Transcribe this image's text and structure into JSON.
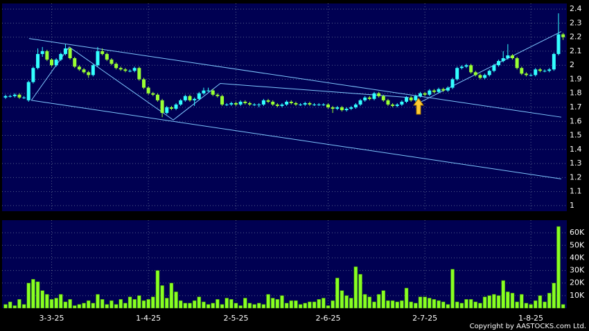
{
  "chart_data": [
    {
      "type": "candlestick",
      "up_color": "#33ffff",
      "down_color": "#99ff33",
      "ylim": [
        0.96,
        2.44
      ],
      "yticks": [
        1,
        1.1,
        1.2,
        1.3,
        1.4,
        1.5,
        1.6,
        1.7,
        1.8,
        1.9,
        2,
        2.1,
        2.2,
        2.3,
        2.4
      ],
      "grid": true,
      "open": [
        1.77,
        1.78,
        1.78,
        1.79,
        1.77,
        1.75,
        1.88,
        1.98,
        2.08,
        2.1,
        2.04,
        2.0,
        2.04,
        2.08,
        2.12,
        2.05,
        1.99,
        1.97,
        1.95,
        1.93,
        2.0,
        2.1,
        2.08,
        2.04,
        2.01,
        1.98,
        1.97,
        1.96,
        1.96,
        1.98,
        1.9,
        1.84,
        1.8,
        1.79,
        1.75,
        1.66,
        1.7,
        1.69,
        1.72,
        1.75,
        1.78,
        1.75,
        1.76,
        1.8,
        1.82,
        1.82,
        1.79,
        1.78,
        1.72,
        1.72,
        1.73,
        1.72,
        1.74,
        1.73,
        1.72,
        1.72,
        1.72,
        1.75,
        1.74,
        1.72,
        1.71,
        1.72,
        1.74,
        1.73,
        1.72,
        1.72,
        1.73,
        1.72,
        1.72,
        1.72,
        1.72,
        1.7,
        1.69,
        1.7,
        1.68,
        1.69,
        1.7,
        1.72,
        1.75,
        1.77,
        1.76,
        1.8,
        1.78,
        1.75,
        1.72,
        1.71,
        1.72,
        1.74,
        1.77,
        1.75,
        1.78,
        1.8,
        1.79,
        1.82,
        1.81,
        1.83,
        1.82,
        1.84,
        1.9,
        1.98,
        1.99,
        2.0,
        1.95,
        1.93,
        1.91,
        1.93,
        1.96,
        2.0,
        2.03,
        2.05,
        2.07,
        2.05,
        1.98,
        1.94,
        1.93,
        1.93,
        1.97,
        1.96,
        1.96,
        1.97,
        2.08,
        2.22
      ],
      "high": [
        1.79,
        1.79,
        1.8,
        1.8,
        1.78,
        1.89,
        1.99,
        2.12,
        2.13,
        2.11,
        2.05,
        2.05,
        2.09,
        2.15,
        2.13,
        2.06,
        2.0,
        1.98,
        1.96,
        2.01,
        2.13,
        2.12,
        2.09,
        2.05,
        2.02,
        1.99,
        1.98,
        1.97,
        1.99,
        1.99,
        1.91,
        1.85,
        1.81,
        1.8,
        1.76,
        1.71,
        1.71,
        1.73,
        1.76,
        1.79,
        1.79,
        1.77,
        1.81,
        1.84,
        1.84,
        1.83,
        1.8,
        1.79,
        1.73,
        1.74,
        1.74,
        1.75,
        1.75,
        1.74,
        1.73,
        1.73,
        1.76,
        1.76,
        1.75,
        1.73,
        1.73,
        1.75,
        1.75,
        1.74,
        1.73,
        1.74,
        1.74,
        1.73,
        1.73,
        1.73,
        1.73,
        1.71,
        1.71,
        1.71,
        1.7,
        1.71,
        1.73,
        1.76,
        1.78,
        1.78,
        1.81,
        1.81,
        1.79,
        1.76,
        1.73,
        1.73,
        1.75,
        1.78,
        1.78,
        1.79,
        1.81,
        1.81,
        1.83,
        1.83,
        1.84,
        1.84,
        1.85,
        1.91,
        1.99,
        2.0,
        2.01,
        2.01,
        1.96,
        1.94,
        1.94,
        1.97,
        2.01,
        2.04,
        2.1,
        2.15,
        2.08,
        2.06,
        1.99,
        1.95,
        1.94,
        1.98,
        1.98,
        1.97,
        1.98,
        2.09,
        2.37,
        2.23
      ],
      "low": [
        1.76,
        1.77,
        1.77,
        1.76,
        1.76,
        1.74,
        1.87,
        1.97,
        2.06,
        2.03,
        1.99,
        1.99,
        2.03,
        2.07,
        2.04,
        1.98,
        1.96,
        1.94,
        1.91,
        1.92,
        1.99,
        2.07,
        2.03,
        2.0,
        1.97,
        1.96,
        1.95,
        1.95,
        1.95,
        1.89,
        1.83,
        1.79,
        1.78,
        1.74,
        1.63,
        1.65,
        1.68,
        1.68,
        1.71,
        1.74,
        1.74,
        1.71,
        1.75,
        1.79,
        1.81,
        1.78,
        1.77,
        1.71,
        1.71,
        1.71,
        1.71,
        1.71,
        1.72,
        1.71,
        1.71,
        1.7,
        1.71,
        1.73,
        1.71,
        1.7,
        1.7,
        1.71,
        1.72,
        1.71,
        1.71,
        1.71,
        1.71,
        1.71,
        1.71,
        1.71,
        1.69,
        1.66,
        1.68,
        1.67,
        1.67,
        1.68,
        1.69,
        1.71,
        1.74,
        1.75,
        1.75,
        1.77,
        1.74,
        1.71,
        1.7,
        1.7,
        1.71,
        1.73,
        1.74,
        1.74,
        1.77,
        1.78,
        1.78,
        1.8,
        1.8,
        1.81,
        1.81,
        1.83,
        1.89,
        1.97,
        1.98,
        1.94,
        1.92,
        1.9,
        1.9,
        1.92,
        1.95,
        1.99,
        2.02,
        2.04,
        2.04,
        1.97,
        1.93,
        1.92,
        1.92,
        1.92,
        1.95,
        1.95,
        1.95,
        1.96,
        2.07,
        2.18
      ],
      "close": [
        1.78,
        1.78,
        1.79,
        1.77,
        1.77,
        1.88,
        1.98,
        2.08,
        2.1,
        2.04,
        2.0,
        2.04,
        2.08,
        2.12,
        2.05,
        1.99,
        1.97,
        1.95,
        1.93,
        2.0,
        2.1,
        2.08,
        2.04,
        2.01,
        1.98,
        1.97,
        1.96,
        1.96,
        1.98,
        1.9,
        1.84,
        1.8,
        1.79,
        1.75,
        1.66,
        1.7,
        1.69,
        1.72,
        1.75,
        1.78,
        1.75,
        1.76,
        1.8,
        1.82,
        1.82,
        1.79,
        1.78,
        1.72,
        1.72,
        1.73,
        1.72,
        1.74,
        1.73,
        1.72,
        1.72,
        1.72,
        1.75,
        1.74,
        1.72,
        1.71,
        1.72,
        1.74,
        1.73,
        1.72,
        1.72,
        1.73,
        1.72,
        1.72,
        1.72,
        1.72,
        1.7,
        1.69,
        1.7,
        1.68,
        1.69,
        1.7,
        1.72,
        1.75,
        1.77,
        1.76,
        1.8,
        1.78,
        1.75,
        1.72,
        1.71,
        1.72,
        1.74,
        1.77,
        1.75,
        1.78,
        1.8,
        1.79,
        1.82,
        1.81,
        1.83,
        1.82,
        1.84,
        1.9,
        1.98,
        1.99,
        2.0,
        1.95,
        1.93,
        1.91,
        1.93,
        1.96,
        2.0,
        2.03,
        2.05,
        2.07,
        2.05,
        1.98,
        1.94,
        1.93,
        1.93,
        1.97,
        1.96,
        1.96,
        1.97,
        2.08,
        2.22,
        2.2
      ],
      "line_color": "#7fc8ff",
      "lines": [
        {
          "x": [
            5.1,
            120.6
          ],
          "y": [
            2.19,
            1.63
          ]
        },
        {
          "x": [
            5.6,
            120.6
          ],
          "y": [
            1.75,
            1.19
          ]
        },
        {
          "x": [
            5.6,
            13.8,
            36.4,
            46.6,
            87.5
          ],
          "y": [
            1.75,
            2.13,
            1.61,
            1.87,
            1.77
          ]
        },
        {
          "x": [
            89,
            120.6
          ],
          "y": [
            1.72,
            2.24
          ]
        }
      ]
    },
    {
      "type": "bar",
      "color": "#88ff22",
      "ylim": [
        0,
        70000
      ],
      "yticks": [
        {
          "value": 10000,
          "label": "10K"
        },
        {
          "value": 20000,
          "label": "20K"
        },
        {
          "value": 30000,
          "label": "30K"
        },
        {
          "value": 40000,
          "label": "40K"
        },
        {
          "value": 50000,
          "label": "50K"
        },
        {
          "value": 60000,
          "label": "60K"
        }
      ],
      "grid": true,
      "categories": [
        null,
        null,
        null,
        null,
        null,
        null,
        null,
        null,
        null,
        null,
        "3-3-25",
        null,
        null,
        null,
        null,
        null,
        null,
        null,
        null,
        null,
        null,
        null,
        null,
        null,
        null,
        null,
        null,
        null,
        null,
        null,
        null,
        "1-4-25",
        null,
        null,
        null,
        null,
        null,
        null,
        null,
        null,
        null,
        null,
        null,
        null,
        null,
        null,
        null,
        null,
        null,
        null,
        "2-5-25",
        null,
        null,
        null,
        null,
        null,
        null,
        null,
        null,
        null,
        null,
        null,
        null,
        null,
        null,
        null,
        null,
        null,
        null,
        null,
        "2-6-25",
        null,
        null,
        null,
        null,
        null,
        null,
        null,
        null,
        null,
        null,
        null,
        null,
        null,
        null,
        null,
        null,
        null,
        null,
        null,
        null,
        "2-7-25",
        null,
        null,
        null,
        null,
        null,
        null,
        null,
        null,
        null,
        null,
        null,
        null,
        null,
        null,
        null,
        null,
        null,
        null,
        null,
        null,
        null,
        null,
        "1-8-25",
        null,
        null,
        null,
        null,
        null,
        null,
        null
      ],
      "values": [
        3000,
        5000,
        2000,
        7000,
        3000,
        20000,
        23000,
        21000,
        14000,
        11000,
        7000,
        8000,
        11000,
        5000,
        7000,
        2000,
        3000,
        4000,
        6000,
        4000,
        11000,
        7000,
        3000,
        6000,
        3000,
        7000,
        4000,
        9000,
        7000,
        10000,
        6000,
        7000,
        9000,
        30000,
        18000,
        8000,
        20000,
        13000,
        6000,
        4000,
        4000,
        6000,
        9000,
        5000,
        3000,
        4000,
        7000,
        3000,
        8000,
        7000,
        4000,
        2000,
        8000,
        4000,
        3000,
        4000,
        3000,
        11000,
        8000,
        7000,
        10000,
        4000,
        6000,
        6000,
        3000,
        4000,
        5000,
        5000,
        7000,
        8000,
        2000,
        6000,
        24000,
        14000,
        10000,
        8000,
        33000,
        27000,
        11000,
        9000,
        5000,
        11000,
        14000,
        6000,
        6000,
        5000,
        6000,
        16000,
        5000,
        4000,
        9000,
        9000,
        8000,
        7000,
        6000,
        5000,
        3000,
        31000,
        5000,
        4000,
        7000,
        7000,
        5000,
        4000,
        9000,
        10000,
        11000,
        10000,
        22000,
        13000,
        12000,
        5000,
        11000,
        4000,
        3000,
        6000,
        10000,
        5000,
        12000,
        20000,
        65000,
        3000
      ]
    },
    {
      "type": "text",
      "copyright": "Copyright by AASTOCKS.com Ltd."
    }
  ]
}
